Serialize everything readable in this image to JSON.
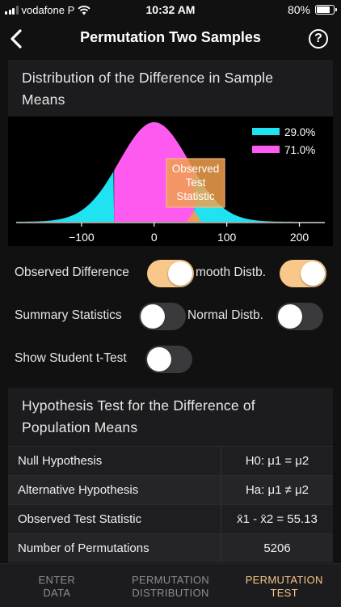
{
  "status": {
    "carrier": "vodafone P",
    "time": "10:32 AM",
    "battery": "80%"
  },
  "nav": {
    "title": "Permutation Two Samples",
    "help_glyph": "?"
  },
  "chart_card": {
    "title_line1": "Distribution of the Difference in Sample",
    "title_line2": "Means",
    "legend": [
      {
        "label": "29.0%",
        "color": "#20e3f2"
      },
      {
        "label": "71.0%",
        "color": "#ff5af0"
      }
    ],
    "observed_box": [
      "Observed",
      "Test",
      "Statistic"
    ],
    "observed_color": "#f2a04c"
  },
  "chart_data": {
    "type": "area",
    "x_ticks": [
      -100,
      0,
      100,
      200
    ],
    "xlim": [
      -190,
      235
    ],
    "observed_statistic": 55.13,
    "lower_split": -55.13,
    "series": [
      {
        "name": "29.0%",
        "color": "#20e3f2"
      },
      {
        "name": "71.0%",
        "color": "#ff5af0"
      }
    ]
  },
  "toggles": {
    "observed_difference": {
      "label": "Observed Difference",
      "on": true
    },
    "smooth_distb": {
      "label": "mooth Distb.",
      "on": true
    },
    "summary_statistics": {
      "label": "Summary Statistics",
      "on": false
    },
    "normal_distb": {
      "label": "Normal Distb.",
      "on": false
    },
    "student_t": {
      "label": "Show Student t-Test",
      "on": false
    }
  },
  "hypothesis": {
    "title_line1": "Hypothesis Test for the Difference of",
    "title_line2": "Population Means",
    "rows": [
      {
        "label": "Null Hypothesis",
        "value": "H0: μ1 = μ2"
      },
      {
        "label": "Alternative Hypothesis",
        "value": "Ha: μ1 ≠ μ2"
      },
      {
        "label": "Observed Test Statistic",
        "value": "x̄1 - x̄2 = 55.13"
      },
      {
        "label": "Number of Permutations",
        "value": "5206"
      }
    ]
  },
  "tabs": [
    {
      "line1": "ENTER",
      "line2": "DATA"
    },
    {
      "line1": "PERMUTATION",
      "line2": "DISTRIBUTION"
    },
    {
      "line1": "PERMUTATION",
      "line2": "TEST"
    }
  ],
  "colors": {
    "accent": "#f9c78a",
    "cyan": "#20e3f2",
    "magenta": "#ff5af0"
  }
}
